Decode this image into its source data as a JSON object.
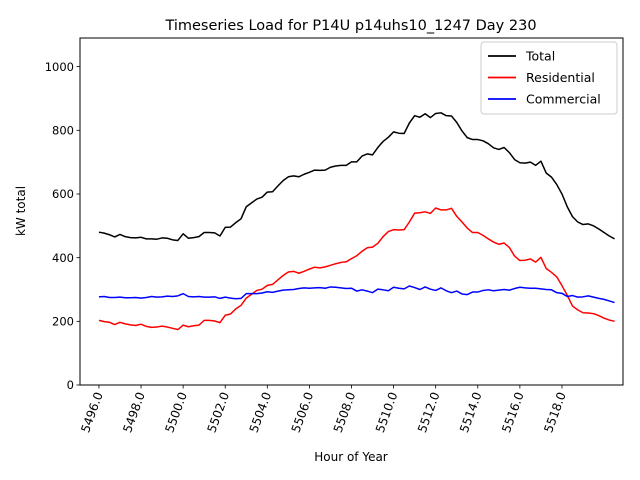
{
  "chart_data": {
    "type": "line",
    "title": "Timeseries Load for P14U p14uhs10_1247  Day 230",
    "xlabel": "Hour of Year",
    "ylabel": "kW total",
    "xlim": [
      5495.1,
      5520.9
    ],
    "ylim": [
      0,
      1090
    ],
    "xticks": [
      5496,
      5498,
      5500,
      5502,
      5504,
      5506,
      5508,
      5510,
      5512,
      5514,
      5516,
      5518
    ],
    "xtick_labels": [
      "5496.0",
      "5498.0",
      "5500.0",
      "5502.0",
      "5504.0",
      "5506.0",
      "5508.0",
      "5510.0",
      "5512.0",
      "5514.0",
      "5516.0",
      "5518.0"
    ],
    "yticks": [
      0,
      200,
      400,
      600,
      800,
      1000
    ],
    "ytick_labels": [
      "0",
      "200",
      "400",
      "600",
      "800",
      "1000"
    ],
    "legend_position": "top-right",
    "grid": false,
    "x_start": 5496.0,
    "x_step": 0.25,
    "series": [
      {
        "name": "Total",
        "color": "#000000",
        "values": [
          480,
          477,
          472,
          465,
          473,
          466,
          463,
          462,
          464,
          459,
          459,
          458,
          462,
          461,
          456,
          454,
          475,
          461,
          463,
          466,
          479,
          479,
          478,
          468,
          495,
          496,
          510,
          522,
          560,
          572,
          584,
          590,
          606,
          607,
          625,
          642,
          654,
          657,
          654,
          662,
          668,
          675,
          674,
          675,
          684,
          688,
          690,
          690,
          701,
          701,
          719,
          726,
          723,
          746,
          765,
          778,
          795,
          791,
          790,
          823,
          846,
          841,
          852,
          840,
          853,
          855,
          846,
          845,
          825,
          798,
          777,
          771,
          771,
          767,
          758,
          745,
          740,
          746,
          730,
          708,
          698,
          697,
          700,
          690,
          703,
          666,
          653,
          630,
          600,
          560,
          529,
          512,
          504,
          506,
          500,
          490,
          479,
          468,
          459
        ]
      },
      {
        "name": "Residential",
        "color": "#ff0000",
        "values": [
          203,
          199,
          197,
          190,
          197,
          192,
          189,
          187,
          191,
          184,
          181,
          182,
          185,
          182,
          178,
          174,
          188,
          183,
          186,
          188,
          203,
          203,
          201,
          196,
          219,
          223,
          239,
          250,
          273,
          285,
          297,
          301,
          313,
          316,
          330,
          344,
          355,
          357,
          351,
          357,
          364,
          370,
          368,
          371,
          376,
          381,
          385,
          387,
          397,
          406,
          420,
          431,
          433,
          445,
          466,
          482,
          488,
          487,
          488,
          512,
          540,
          541,
          544,
          539,
          556,
          550,
          550,
          555,
          530,
          512,
          493,
          479,
          479,
          470,
          459,
          449,
          442,
          446,
          432,
          405,
          391,
          392,
          396,
          386,
          401,
          366,
          354,
          340,
          312,
          282,
          248,
          236,
          227,
          226,
          224,
          218,
          210,
          204,
          200
        ]
      },
      {
        "name": "Commercial",
        "color": "#0000ff",
        "values": [
          277,
          278,
          275,
          275,
          276,
          274,
          274,
          275,
          273,
          275,
          278,
          276,
          277,
          279,
          278,
          280,
          287,
          278,
          277,
          278,
          276,
          276,
          277,
          272,
          276,
          273,
          271,
          272,
          287,
          287,
          287,
          289,
          293,
          291,
          295,
          298,
          299,
          300,
          303,
          305,
          304,
          305,
          306,
          304,
          308,
          307,
          305,
          303,
          304,
          295,
          299,
          295,
          290,
          301,
          299,
          296,
          307,
          304,
          302,
          311,
          306,
          300,
          308,
          301,
          297,
          305,
          296,
          290,
          295,
          286,
          284,
          292,
          292,
          297,
          299,
          296,
          298,
          300,
          298,
          303,
          307,
          305,
          304,
          304,
          302,
          300,
          299,
          290,
          288,
          278,
          281,
          276,
          277,
          280,
          276,
          272,
          269,
          264,
          259
        ]
      }
    ]
  }
}
